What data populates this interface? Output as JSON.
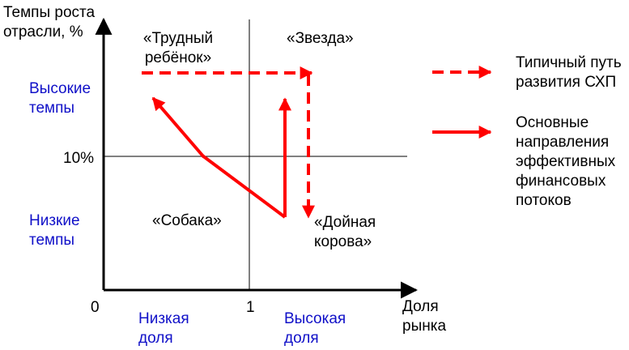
{
  "axes": {
    "y_title_line1": "Темпы роста",
    "y_title_line2": "отрасли, %",
    "x_title_line1": "Доля",
    "x_title_line2": "рынка",
    "origin_label": "0",
    "x_mid_label": "1",
    "y_mid_label": "10%"
  },
  "rows": {
    "high_line1": "Высокие",
    "high_line2": "темпы",
    "low_line1": "Низкие",
    "low_line2": "темпы"
  },
  "columns": {
    "low_line1": "Низкая",
    "low_line2": "доля",
    "high_line1": "Высокая",
    "high_line2": "доля"
  },
  "quadrants": {
    "problem_child_line1": "«Трудный",
    "problem_child_line2": "ребёнок»",
    "star": "«Звезда»",
    "dog": "«Собака»",
    "cash_cow_line1": "«Дойная",
    "cash_cow_line2": "корова»"
  },
  "legend": {
    "dashed_line1": "Типичный путь",
    "dashed_line2": "развития СХП",
    "solid_line1": "Основные",
    "solid_line2": "направления",
    "solid_line3": "эффективных",
    "solid_line4": "финансовых",
    "solid_line5": "потоков"
  },
  "colors": {
    "axis": "#000000",
    "arrow": "#ff0000",
    "label_blue": "#1010c8"
  }
}
